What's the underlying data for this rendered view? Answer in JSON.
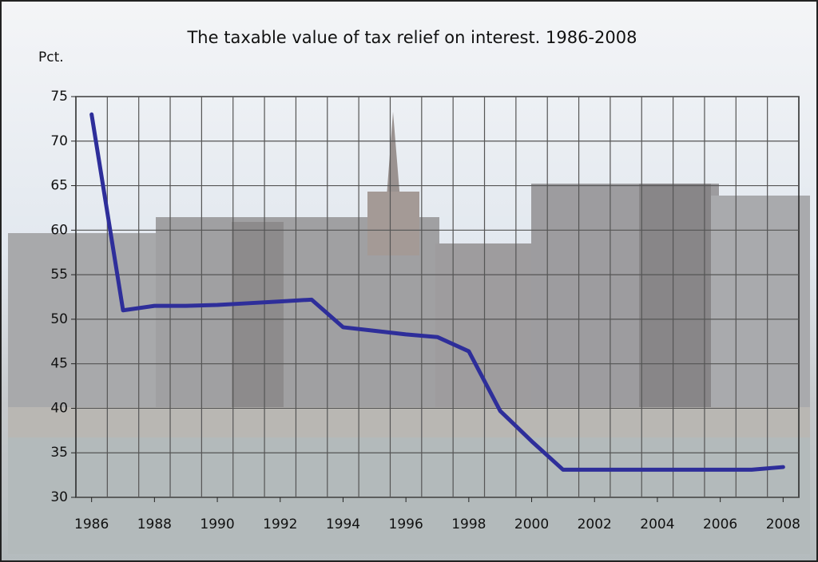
{
  "chart_data": {
    "type": "line",
    "title": "The taxable value of tax relief on interest. 1986-2008",
    "y_label": "Pct.",
    "categories": [
      "1986",
      null,
      "1988",
      null,
      "1990",
      null,
      "1992",
      null,
      "1994",
      null,
      "1996",
      null,
      "1998",
      null,
      "2000",
      null,
      "2002",
      null,
      "2004",
      null,
      "2006",
      null,
      "2008"
    ],
    "series": [
      {
        "name": "Taxable value",
        "color": "#2e2e9a",
        "values": [
          73.0,
          51.0,
          51.5,
          51.5,
          51.6,
          51.8,
          52.0,
          52.2,
          49.1,
          48.7,
          48.3,
          48.0,
          46.4,
          39.7,
          36.3,
          33.1,
          33.1,
          33.1,
          33.1,
          33.1,
          33.1,
          33.1,
          33.4
        ]
      }
    ],
    "ylim": [
      30,
      75
    ],
    "yticks": [
      30,
      35,
      40,
      45,
      50,
      55,
      60,
      65,
      70,
      75
    ],
    "grid": true
  }
}
